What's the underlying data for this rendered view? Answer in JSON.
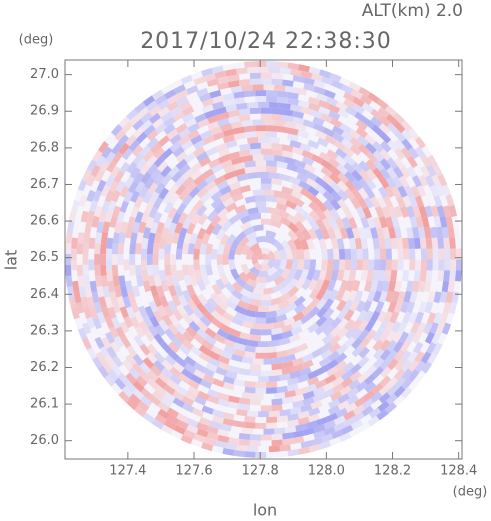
{
  "chart_data": {
    "type": "image",
    "title": "2017/10/24 22:38:30",
    "annotation": "ALT(km) 2.0",
    "y_unit": "(deg)",
    "x_unit": "(deg)",
    "xlabel": "lon",
    "ylabel": "lat",
    "xlim": [
      127.21,
      128.41
    ],
    "ylim": [
      25.95,
      27.04
    ],
    "xticks": [
      127.4,
      127.6,
      127.8,
      {
        "value": 128,
        "label": "128.0"
      },
      128.2,
      128.4
    ],
    "yticks": [
      {
        "value": 26,
        "label": "26.0"
      },
      26.1,
      26.2,
      26.3,
      26.4,
      26.5,
      26.6,
      26.7,
      26.8,
      26.9,
      {
        "value": 27,
        "label": "27.0"
      }
    ],
    "colors": [
      "#f2a0a0",
      "#a4a4f2"
    ]
  }
}
